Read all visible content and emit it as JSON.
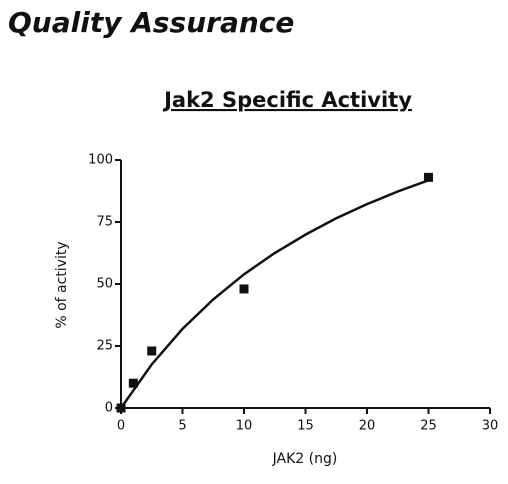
{
  "header": {
    "title": "Quality Assurance"
  },
  "chart_data": {
    "type": "scatter",
    "title": "Jak2 Specific Activity",
    "x_label": "JAK2 (ng)",
    "y_label": "% of activity",
    "x": [
      0,
      1,
      2.5,
      10,
      25
    ],
    "values": [
      0,
      10,
      23,
      48,
      93
    ],
    "color": "#111111",
    "curve": {
      "x": [
        0,
        2.5,
        5,
        7.5,
        10,
        12.5,
        15,
        17.5,
        20,
        22.5,
        25
      ],
      "values": [
        0,
        17.6,
        31.9,
        43.8,
        53.9,
        62.5,
        69.9,
        76.5,
        82.2,
        87.3,
        91.8
      ]
    },
    "xlim": [
      0,
      30
    ],
    "xticks": [
      0,
      5,
      10,
      15,
      20,
      25,
      30
    ],
    "ylim": [
      0,
      100
    ],
    "yticks": [
      0,
      25,
      50,
      75,
      100
    ],
    "grid": false
  }
}
